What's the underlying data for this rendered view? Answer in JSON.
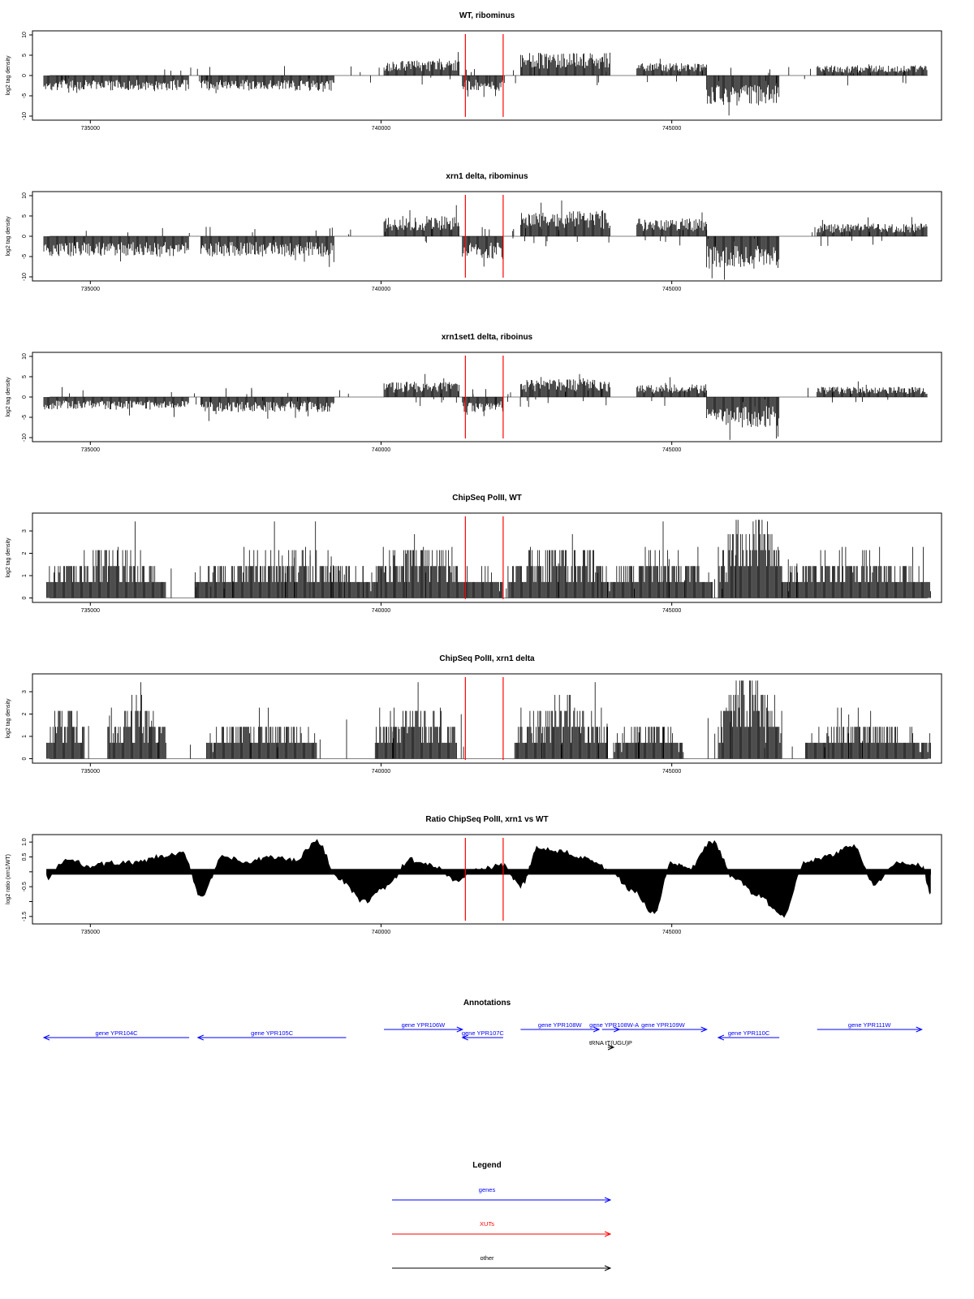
{
  "colors": {
    "signal": "#000000",
    "xut_marker": "#ff0000",
    "genes": "#0000ff",
    "xuts": "#ff0000",
    "other": "#000000"
  },
  "chart_data": [
    {
      "type": "bar",
      "title": "WT, ribominus",
      "ylabel": "log2 tag density",
      "ylim": [
        -11,
        11
      ],
      "yticks": [
        -10,
        -5,
        0,
        5,
        10
      ],
      "xlim": [
        734200,
        749500
      ],
      "xticks": [
        735000,
        740000,
        745000
      ],
      "red_lines": [
        741450,
        742100
      ],
      "segments": [
        {
          "start": 734200,
          "end": 736700,
          "strand": "minus",
          "level": 3
        },
        {
          "start": 736900,
          "end": 739200,
          "strand": "minus",
          "level": 3
        },
        {
          "start": 740050,
          "end": 741350,
          "strand": "plus",
          "level": 3
        },
        {
          "start": 741400,
          "end": 742100,
          "strand": "minus",
          "level": 3
        },
        {
          "start": 742400,
          "end": 743950,
          "strand": "plus",
          "level": 4.5
        },
        {
          "start": 744400,
          "end": 745600,
          "strand": "plus",
          "level": 2.5
        },
        {
          "start": 745600,
          "end": 746850,
          "strand": "minus",
          "level": 6
        },
        {
          "start": 747500,
          "end": 749400,
          "strand": "plus",
          "level": 2
        }
      ]
    },
    {
      "type": "bar",
      "title": "xrn1 delta, ribominus",
      "ylabel": "log2 tag density",
      "ylim": [
        -11,
        11
      ],
      "yticks": [
        -10,
        -5,
        0,
        5,
        10
      ],
      "xlim": [
        734200,
        749500
      ],
      "xticks": [
        735000,
        740000,
        745000
      ],
      "red_lines": [
        741450,
        742100
      ],
      "segments": [
        {
          "start": 734200,
          "end": 736700,
          "strand": "minus",
          "level": 4
        },
        {
          "start": 736900,
          "end": 739200,
          "strand": "minus",
          "level": 4
        },
        {
          "start": 740050,
          "end": 741350,
          "strand": "plus",
          "level": 4
        },
        {
          "start": 741400,
          "end": 742100,
          "strand": "minus",
          "level": 4.5
        },
        {
          "start": 742400,
          "end": 743950,
          "strand": "plus",
          "level": 5
        },
        {
          "start": 744400,
          "end": 745600,
          "strand": "plus",
          "level": 3.5
        },
        {
          "start": 745600,
          "end": 746850,
          "strand": "minus",
          "level": 6.5
        },
        {
          "start": 747500,
          "end": 749400,
          "strand": "plus",
          "level": 2.5
        }
      ]
    },
    {
      "type": "bar",
      "title": "xrn1set1 delta, riboinus",
      "ylabel": "log2 tag density",
      "ylim": [
        -11,
        11
      ],
      "yticks": [
        -10,
        -5,
        0,
        5,
        10
      ],
      "xlim": [
        734200,
        749500
      ],
      "xticks": [
        735000,
        740000,
        745000
      ],
      "red_lines": [
        741450,
        742100
      ],
      "segments": [
        {
          "start": 734200,
          "end": 736700,
          "strand": "minus",
          "level": 2.5
        },
        {
          "start": 736900,
          "end": 739200,
          "strand": "minus",
          "level": 3
        },
        {
          "start": 740050,
          "end": 741350,
          "strand": "plus",
          "level": 3
        },
        {
          "start": 741400,
          "end": 742100,
          "strand": "minus",
          "level": 3
        },
        {
          "start": 742400,
          "end": 743950,
          "strand": "plus",
          "level": 3.5
        },
        {
          "start": 744400,
          "end": 745600,
          "strand": "plus",
          "level": 2.5
        },
        {
          "start": 745600,
          "end": 746850,
          "strand": "minus",
          "level": 6
        },
        {
          "start": 747500,
          "end": 749400,
          "strand": "plus",
          "level": 2
        }
      ]
    },
    {
      "type": "bar",
      "title": "ChipSeq PolII, WT",
      "ylabel": "log2 tag density",
      "ylim": [
        -0.2,
        3.8
      ],
      "yticks": [
        0,
        1,
        2,
        3
      ],
      "xlim": [
        734200,
        749500
      ],
      "xticks": [
        735000,
        740000,
        745000
      ],
      "red_lines": [
        741450,
        742100
      ],
      "segments": [
        {
          "start": 734250,
          "end": 736300,
          "strand": "plus",
          "level": 1.5
        },
        {
          "start": 736800,
          "end": 739900,
          "strand": "plus",
          "level": 1.4
        },
        {
          "start": 739900,
          "end": 741500,
          "strand": "plus",
          "level": 1.8
        },
        {
          "start": 741500,
          "end": 742100,
          "strand": "plus",
          "level": 1.0
        },
        {
          "start": 742200,
          "end": 743900,
          "strand": "plus",
          "level": 1.8
        },
        {
          "start": 743900,
          "end": 745700,
          "strand": "plus",
          "level": 1.4
        },
        {
          "start": 745800,
          "end": 746900,
          "strand": "plus",
          "level": 2.6
        },
        {
          "start": 746900,
          "end": 749450,
          "strand": "plus",
          "level": 1.4
        }
      ]
    },
    {
      "type": "bar",
      "title": "ChipSeq PolII, xrn1 delta",
      "ylabel": "log2 tag density",
      "ylim": [
        -0.2,
        3.8
      ],
      "yticks": [
        0,
        1,
        2,
        3
      ],
      "xlim": [
        734200,
        749500
      ],
      "xticks": [
        735000,
        740000,
        745000
      ],
      "red_lines": [
        741450,
        742100
      ],
      "segments": [
        {
          "start": 734250,
          "end": 734900,
          "strand": "plus",
          "level": 1.6
        },
        {
          "start": 735300,
          "end": 736300,
          "strand": "plus",
          "level": 1.8
        },
        {
          "start": 737000,
          "end": 738900,
          "strand": "plus",
          "level": 1.2
        },
        {
          "start": 739900,
          "end": 741300,
          "strand": "plus",
          "level": 1.7
        },
        {
          "start": 742300,
          "end": 743900,
          "strand": "plus",
          "level": 1.8
        },
        {
          "start": 744000,
          "end": 745200,
          "strand": "plus",
          "level": 1.1
        },
        {
          "start": 745800,
          "end": 746900,
          "strand": "plus",
          "level": 2.7
        },
        {
          "start": 747300,
          "end": 749450,
          "strand": "plus",
          "level": 1.2
        }
      ]
    },
    {
      "type": "area",
      "title": "Ratio ChipSeq PolII, xrn1 vs WT",
      "ylabel": "log2 ratio (xrn1/WT)",
      "ylim": [
        -1.75,
        1.25
      ],
      "yticks": [
        -1.5,
        -1,
        -0.5,
        0,
        0.5,
        1
      ],
      "ytick_labels": [
        "-1.5",
        "",
        "-0.5",
        "",
        "0.5",
        "1.0"
      ],
      "xlim": [
        734200,
        749500
      ],
      "xticks": [
        735000,
        740000,
        745000
      ],
      "red_lines": [
        741450,
        742100
      ],
      "x": [
        734250,
        734600,
        735000,
        735400,
        735800,
        736200,
        736600,
        736900,
        737300,
        737700,
        738100,
        738500,
        738900,
        739300,
        739700,
        740100,
        740500,
        740900,
        741300,
        741700,
        742100,
        742400,
        742700,
        743100,
        743500,
        743900,
        744300,
        744700,
        745000,
        745300,
        745700,
        746100,
        746500,
        746900,
        747300,
        747700,
        748100,
        748500,
        748900,
        749300,
        749450
      ],
      "values": [
        -0.2,
        0.4,
        0.2,
        0.3,
        0.3,
        0.5,
        0.6,
        -0.8,
        0.5,
        0.3,
        0.5,
        0.4,
        1.0,
        -0.3,
        -1.0,
        -0.5,
        0.4,
        0.2,
        -0.3,
        0.1,
        0.2,
        -0.5,
        0.8,
        0.7,
        0.5,
        0.1,
        -0.6,
        -1.4,
        0.3,
        0.1,
        1.0,
        -0.3,
        -0.8,
        -1.5,
        0.3,
        0.5,
        0.9,
        -0.4,
        0.3,
        0.2,
        -0.7
      ]
    }
  ],
  "annotations": {
    "title": "Annotations",
    "features": [
      {
        "label": "gene YPR104C",
        "start": 734200,
        "end": 736700,
        "strand": "minus",
        "row": 1,
        "category": "genes"
      },
      {
        "label": "gene YPR105C",
        "start": 736850,
        "end": 739400,
        "strand": "minus",
        "row": 1,
        "category": "genes"
      },
      {
        "label": "gene YPR106W",
        "start": 740050,
        "end": 741400,
        "strand": "plus",
        "row": 0,
        "category": "genes"
      },
      {
        "label": "gene YPR107C",
        "start": 741400,
        "end": 742100,
        "strand": "minus",
        "row": 1,
        "category": "genes"
      },
      {
        "label": "gene YPR108W",
        "start": 742400,
        "end": 743750,
        "strand": "plus",
        "row": 0,
        "category": "genes"
      },
      {
        "label": "gene YPR108W-A",
        "start": 743800,
        "end": 744100,
        "strand": "plus",
        "row": 0,
        "category": "genes"
      },
      {
        "label": "gene YPR109W",
        "start": 744100,
        "end": 745600,
        "strand": "plus",
        "row": 0,
        "category": "genes"
      },
      {
        "label": "gene YPR110C",
        "start": 745800,
        "end": 746850,
        "strand": "minus",
        "row": 1,
        "category": "genes"
      },
      {
        "label": "gene YPR111W",
        "start": 747500,
        "end": 749300,
        "strand": "plus",
        "row": 0,
        "category": "genes"
      },
      {
        "label": "tRNA tT(UGU)P",
        "start": 743900,
        "end": 744000,
        "strand": "plus",
        "row": 2,
        "category": "other"
      }
    ]
  },
  "legend": {
    "title": "Legend",
    "items": [
      {
        "label": "genes",
        "category": "genes"
      },
      {
        "label": "XUTs",
        "category": "xuts"
      },
      {
        "label": "other",
        "category": "other"
      }
    ]
  }
}
